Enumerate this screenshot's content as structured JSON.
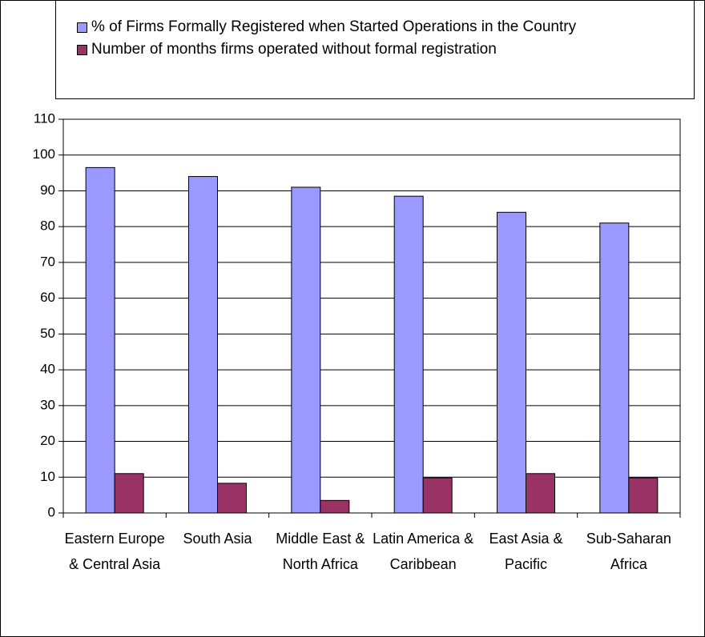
{
  "chart_data": {
    "type": "bar",
    "categories": [
      "Eastern Europe & Central Asia",
      "South Asia",
      "Middle East & North Africa",
      "Latin America & Caribbean",
      "East Asia & Pacific",
      "Sub-Saharan Africa"
    ],
    "series": [
      {
        "name": "% of Firms Formally Registered when Started Operations in the Country",
        "color": "#9999ff",
        "values": [
          96.5,
          94,
          91,
          88.5,
          84,
          81
        ]
      },
      {
        "name": "Number of months firms operated without formal registration",
        "color": "#993366",
        "values": [
          11,
          8.3,
          3.5,
          9.8,
          11,
          9.8
        ]
      }
    ],
    "ylim": [
      0,
      110
    ],
    "yticks": [
      0,
      10,
      20,
      30,
      40,
      50,
      60,
      70,
      80,
      90,
      100,
      110
    ],
    "grid": true,
    "legend": "top"
  }
}
